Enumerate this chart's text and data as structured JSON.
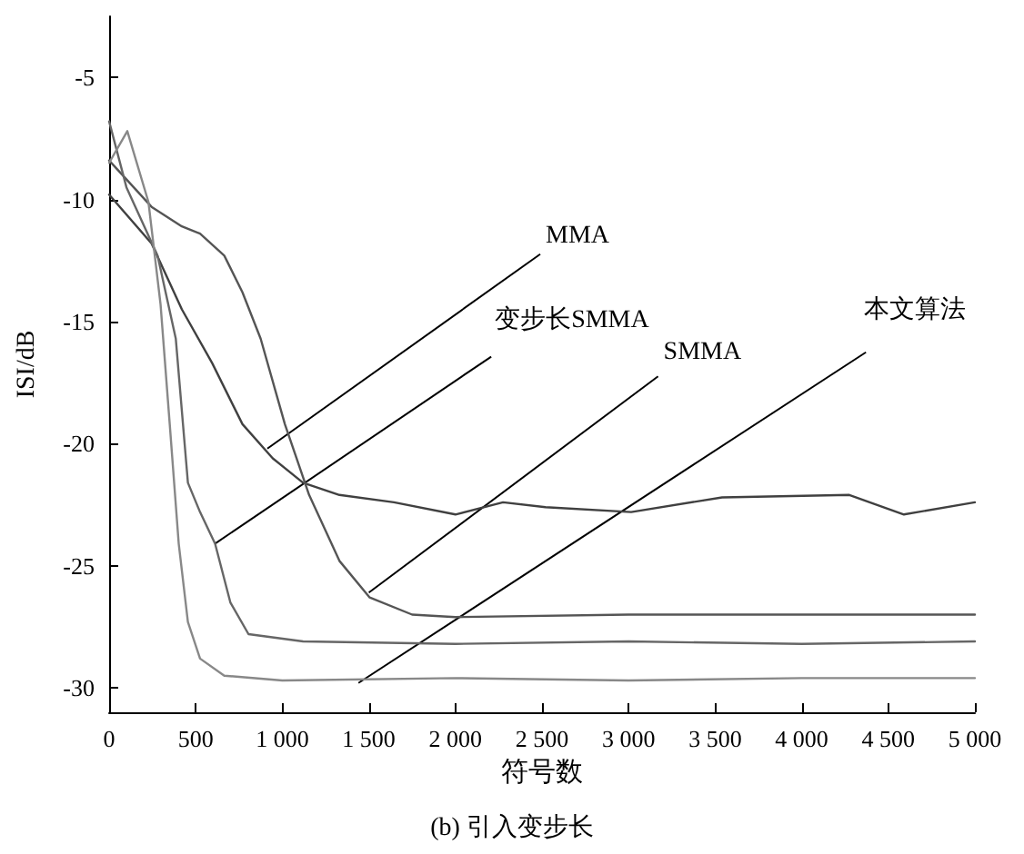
{
  "chart_data": {
    "type": "line",
    "title": "(b) 引入变步长",
    "xlabel": "符号数",
    "ylabel": "ISI/dB",
    "xlim": [
      0,
      5000
    ],
    "ylim": [
      -31,
      -2.5
    ],
    "xticks": [
      0,
      500,
      {
        "value": 1000,
        "label": "1 000"
      },
      {
        "value": 1500,
        "label": "1 500"
      },
      {
        "value": 2000,
        "label": "2 000"
      },
      {
        "value": 2500,
        "label": "2 500"
      },
      {
        "value": 3000,
        "label": "3 000"
      },
      {
        "value": 3500,
        "label": "3 500"
      },
      {
        "value": 4000,
        "label": "4 000"
      },
      {
        "value": 4500,
        "label": "4 500"
      },
      {
        "value": 5000,
        "label": "5 000"
      }
    ],
    "yticks": [
      -30,
      -25,
      -20,
      -15,
      -10,
      -5
    ],
    "grid": false,
    "marker": "none",
    "line_style": "solid",
    "series": [
      {
        "color": "#404040",
        "x": [
          0,
          245,
          420,
          595,
          770,
          945,
          1120,
          1330,
          1645,
          2000,
          2275,
          2520,
          3015,
          3540,
          4275,
          4590,
          5000
        ],
        "values": [
          -9.8,
          -11.8,
          -14.5,
          -16.7,
          -19.2,
          -20.6,
          -21.6,
          -22.1,
          -22.4,
          -22.9,
          -22.4,
          -22.6,
          -22.8,
          -22.2,
          -22.1,
          -22.9,
          -22.4
        ]
      },
      {
        "color": "#555555",
        "x": [
          0,
          245,
          420,
          525,
          665,
          770,
          875,
          1015,
          1155,
          1330,
          1505,
          1750,
          2000,
          3000,
          4000,
          5000
        ],
        "values": [
          -8.4,
          -10.3,
          -11.1,
          -11.4,
          -12.3,
          -13.8,
          -15.7,
          -19.2,
          -22.1,
          -24.8,
          -26.3,
          -27.0,
          -27.1,
          -27.0,
          -27.0,
          -27.0
        ]
      },
      {
        "color": "#666666",
        "x": [
          0,
          100,
          280,
          385,
          455,
          525,
          612,
          700,
          805,
          1120,
          2000,
          3000,
          4000,
          5000
        ],
        "values": [
          -6.8,
          -9.5,
          -12.3,
          -15.7,
          -21.6,
          -22.8,
          -24.1,
          -26.5,
          -27.8,
          -28.1,
          -28.2,
          -28.1,
          -28.2,
          -28.1
        ]
      },
      {
        "color": "#888888",
        "x": [
          0,
          105,
          227,
          297,
          350,
          402,
          455,
          525,
          665,
          1000,
          2000,
          3000,
          4000,
          5000
        ],
        "values": [
          -8.5,
          -7.2,
          -10.1,
          -14.3,
          -19.2,
          -24.1,
          -27.3,
          -28.8,
          -29.5,
          -29.7,
          -29.6,
          -29.7,
          -29.6,
          -29.6
        ]
      }
    ],
    "annotations": [
      {
        "text": "MMA",
        "x": 914,
        "y": -20.2
      },
      {
        "text": "变步长SMMA",
        "x": 610,
        "y": -24.1
      },
      {
        "text": "SMMA",
        "x": 1500,
        "y": -26.1
      },
      {
        "text": "本文算法",
        "x": 1440,
        "y": -29.8
      }
    ]
  }
}
